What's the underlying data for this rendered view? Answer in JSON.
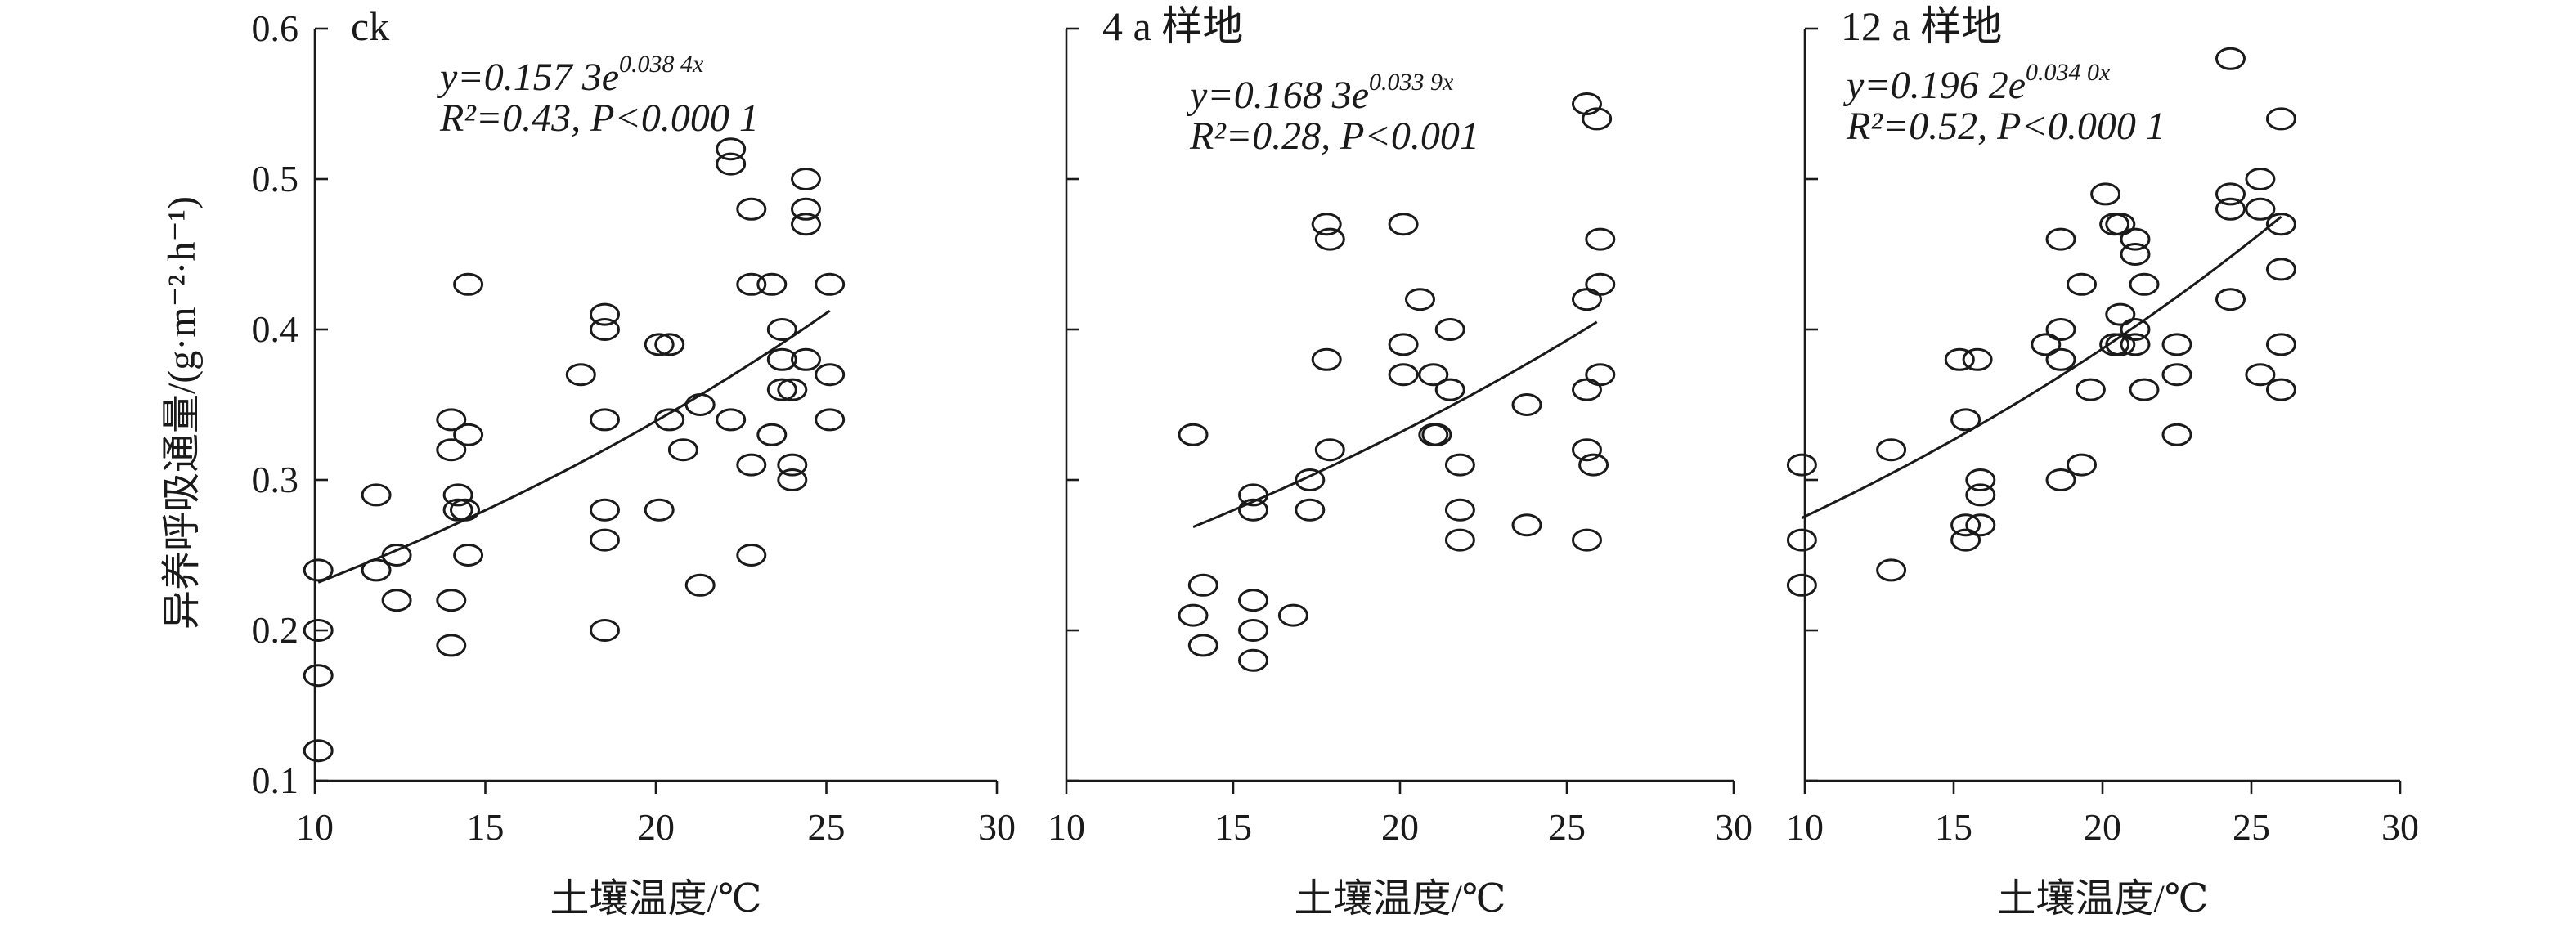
{
  "ylabel": "异养呼吸通量/(g·m⁻²·h⁻¹)",
  "chart_data": [
    {
      "type": "scatter",
      "title": "ck",
      "xlabel": "土壤温度/℃",
      "ylabel": "异养呼吸通量/(g·m⁻²·h⁻¹)",
      "xlim": [
        10,
        30
      ],
      "ylim": [
        0.1,
        0.6
      ],
      "xticks": [
        "10",
        "15",
        "20",
        "25",
        "30"
      ],
      "yticks": [
        "0.1",
        "0.2",
        "0.3",
        "0.4",
        "0.5",
        "0.6"
      ],
      "fit": {
        "a": 0.1573,
        "b": 0.0384,
        "x_range": [
          10.1,
          25.1
        ],
        "eq_prefix": "y=0.157 3e",
        "eq_exp": "0.038 4x",
        "r2_text": "R²=0.43, P<0.000 1"
      },
      "points": [
        [
          10.1,
          0.24
        ],
        [
          10.1,
          0.2
        ],
        [
          10.1,
          0.17
        ],
        [
          10.1,
          0.12
        ],
        [
          11.8,
          0.29
        ],
        [
          11.8,
          0.24
        ],
        [
          12.4,
          0.25
        ],
        [
          12.4,
          0.22
        ],
        [
          14.0,
          0.34
        ],
        [
          14.0,
          0.32
        ],
        [
          14.0,
          0.22
        ],
        [
          14.0,
          0.19
        ],
        [
          14.2,
          0.29
        ],
        [
          14.2,
          0.28
        ],
        [
          14.4,
          0.28
        ],
        [
          14.5,
          0.43
        ],
        [
          14.5,
          0.33
        ],
        [
          14.5,
          0.25
        ],
        [
          17.8,
          0.37
        ],
        [
          18.5,
          0.41
        ],
        [
          18.5,
          0.4
        ],
        [
          18.5,
          0.34
        ],
        [
          18.5,
          0.28
        ],
        [
          18.5,
          0.26
        ],
        [
          18.5,
          0.2
        ],
        [
          20.1,
          0.39
        ],
        [
          20.4,
          0.39
        ],
        [
          20.1,
          0.28
        ],
        [
          20.4,
          0.34
        ],
        [
          20.8,
          0.32
        ],
        [
          21.3,
          0.35
        ],
        [
          21.3,
          0.23
        ],
        [
          22.2,
          0.52
        ],
        [
          22.2,
          0.51
        ],
        [
          22.2,
          0.34
        ],
        [
          22.8,
          0.48
        ],
        [
          22.8,
          0.43
        ],
        [
          22.8,
          0.31
        ],
        [
          22.8,
          0.25
        ],
        [
          23.4,
          0.43
        ],
        [
          23.4,
          0.33
        ],
        [
          23.7,
          0.4
        ],
        [
          23.7,
          0.38
        ],
        [
          23.7,
          0.36
        ],
        [
          24.0,
          0.36
        ],
        [
          24.0,
          0.31
        ],
        [
          24.0,
          0.3
        ],
        [
          24.4,
          0.5
        ],
        [
          24.4,
          0.48
        ],
        [
          24.4,
          0.47
        ],
        [
          24.4,
          0.38
        ],
        [
          25.1,
          0.43
        ],
        [
          25.1,
          0.37
        ],
        [
          25.1,
          0.34
        ]
      ]
    },
    {
      "type": "scatter",
      "title": "4 a 样地",
      "xlabel": "土壤温度/℃",
      "xlim": [
        10,
        30
      ],
      "ylim": [
        0.1,
        0.6
      ],
      "xticks": [
        "10",
        "15",
        "20",
        "25",
        "30"
      ],
      "fit": {
        "a": 0.1683,
        "b": 0.0339,
        "x_range": [
          13.8,
          25.9
        ],
        "eq_prefix": "y=0.168 3e",
        "eq_exp": "0.033 9x",
        "r2_text": "R²=0.28, P<0.001"
      },
      "points": [
        [
          13.8,
          0.33
        ],
        [
          13.8,
          0.21
        ],
        [
          14.1,
          0.23
        ],
        [
          14.1,
          0.19
        ],
        [
          15.6,
          0.29
        ],
        [
          15.6,
          0.28
        ],
        [
          15.6,
          0.22
        ],
        [
          15.6,
          0.2
        ],
        [
          15.6,
          0.18
        ],
        [
          16.8,
          0.21
        ],
        [
          17.3,
          0.3
        ],
        [
          17.3,
          0.28
        ],
        [
          17.8,
          0.47
        ],
        [
          17.9,
          0.46
        ],
        [
          17.8,
          0.38
        ],
        [
          17.9,
          0.32
        ],
        [
          20.1,
          0.47
        ],
        [
          20.1,
          0.39
        ],
        [
          20.1,
          0.37
        ],
        [
          20.6,
          0.42
        ],
        [
          21.0,
          0.37
        ],
        [
          21.0,
          0.33
        ],
        [
          21.1,
          0.33
        ],
        [
          21.5,
          0.4
        ],
        [
          21.5,
          0.36
        ],
        [
          21.8,
          0.31
        ],
        [
          21.8,
          0.28
        ],
        [
          21.8,
          0.26
        ],
        [
          23.8,
          0.35
        ],
        [
          23.8,
          0.27
        ],
        [
          25.6,
          0.55
        ],
        [
          25.6,
          0.42
        ],
        [
          25.6,
          0.36
        ],
        [
          25.6,
          0.32
        ],
        [
          25.6,
          0.26
        ],
        [
          25.9,
          0.54
        ],
        [
          26.0,
          0.46
        ],
        [
          26.0,
          0.43
        ],
        [
          26.0,
          0.37
        ],
        [
          25.8,
          0.31
        ]
      ]
    },
    {
      "type": "scatter",
      "title": "12 a 样地",
      "xlabel": "土壤温度/℃",
      "xlim": [
        10,
        30
      ],
      "ylim": [
        0.1,
        0.6
      ],
      "xticks": [
        "10",
        "15",
        "20",
        "25",
        "30"
      ],
      "fit": {
        "a": 0.1962,
        "b": 0.034,
        "x_range": [
          9.9,
          26.0
        ],
        "eq_prefix": "y=0.196 2e",
        "eq_exp": "0.034 0x",
        "r2_text": "R²=0.52, P<0.000 1"
      },
      "points": [
        [
          9.9,
          0.31
        ],
        [
          9.9,
          0.26
        ],
        [
          9.9,
          0.23
        ],
        [
          12.9,
          0.32
        ],
        [
          12.9,
          0.24
        ],
        [
          15.2,
          0.38
        ],
        [
          15.4,
          0.34
        ],
        [
          15.4,
          0.27
        ],
        [
          15.4,
          0.26
        ],
        [
          15.8,
          0.38
        ],
        [
          15.9,
          0.3
        ],
        [
          15.9,
          0.29
        ],
        [
          15.9,
          0.27
        ],
        [
          18.1,
          0.39
        ],
        [
          18.6,
          0.46
        ],
        [
          18.6,
          0.4
        ],
        [
          18.6,
          0.38
        ],
        [
          18.6,
          0.3
        ],
        [
          19.3,
          0.43
        ],
        [
          19.3,
          0.31
        ],
        [
          19.6,
          0.36
        ],
        [
          20.1,
          0.49
        ],
        [
          20.4,
          0.47
        ],
        [
          20.4,
          0.39
        ],
        [
          20.6,
          0.47
        ],
        [
          20.6,
          0.41
        ],
        [
          20.6,
          0.39
        ],
        [
          21.1,
          0.46
        ],
        [
          21.1,
          0.45
        ],
        [
          21.1,
          0.4
        ],
        [
          21.1,
          0.39
        ],
        [
          21.4,
          0.43
        ],
        [
          21.4,
          0.36
        ],
        [
          22.5,
          0.39
        ],
        [
          22.5,
          0.37
        ],
        [
          22.5,
          0.33
        ],
        [
          24.3,
          0.58
        ],
        [
          24.3,
          0.49
        ],
        [
          24.3,
          0.48
        ],
        [
          24.3,
          0.42
        ],
        [
          25.3,
          0.5
        ],
        [
          25.3,
          0.48
        ],
        [
          25.3,
          0.37
        ],
        [
          26.0,
          0.54
        ],
        [
          26.0,
          0.47
        ],
        [
          26.0,
          0.44
        ],
        [
          26.0,
          0.39
        ],
        [
          26.0,
          0.36
        ]
      ]
    }
  ]
}
